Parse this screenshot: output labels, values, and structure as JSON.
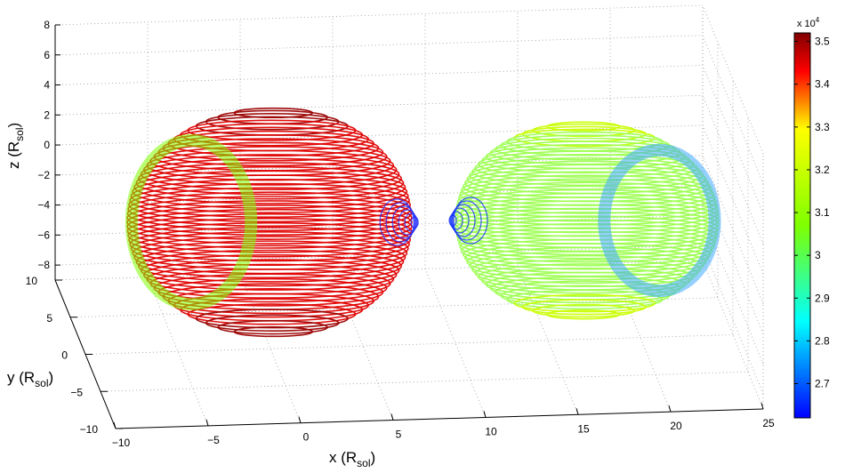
{
  "chart_data": {
    "type": "scatter3d",
    "title": "",
    "xlabel": "x (R",
    "ylabel": "y (R",
    "zlabel": "z (R",
    "axis_unit_subscript": "sol",
    "axis_unit_close": ")",
    "xlim": [
      -10,
      25
    ],
    "ylim": [
      -10,
      10
    ],
    "zlim": [
      -9,
      8
    ],
    "x_ticks": [
      "−10",
      "−5",
      "0",
      "5",
      "10",
      "15",
      "20",
      "25"
    ],
    "y_ticks": [
      "−10",
      "−5",
      "0",
      "5",
      "10"
    ],
    "z_ticks": [
      "−8",
      "−6",
      "−4",
      "−2",
      "0",
      "2",
      "4",
      "6",
      "8"
    ],
    "grid": true,
    "colorbar": {
      "multiplier_base": "x 10",
      "multiplier_exp": "4",
      "ticks": [
        "3.5",
        "3.4",
        "3.3",
        "3.2",
        "3.1",
        "3",
        "2.9",
        "2.8",
        "2.7"
      ],
      "tick_values": [
        3.5,
        3.4,
        3.3,
        3.2,
        3.1,
        3.0,
        2.9,
        2.8,
        2.7
      ],
      "range": [
        2.62,
        3.52
      ],
      "colormap": "jet"
    },
    "series": [
      {
        "center_x": 0,
        "center_z": -1,
        "temperature_range": [
          2.63,
          3.52
        ],
        "colors": {
          "body": "#e00000",
          "rim": "#9b0000",
          "limb": "#7fff00",
          "neck": "#2030ff"
        }
      },
      {
        "center_x": 17,
        "center_z": -1,
        "temperature_range": [
          2.63,
          3.07
        ],
        "colors": {
          "body": "#9cff50",
          "rim": "#c8ff00",
          "limb": "#3faaff",
          "neck": "#1030ff"
        }
      }
    ]
  }
}
